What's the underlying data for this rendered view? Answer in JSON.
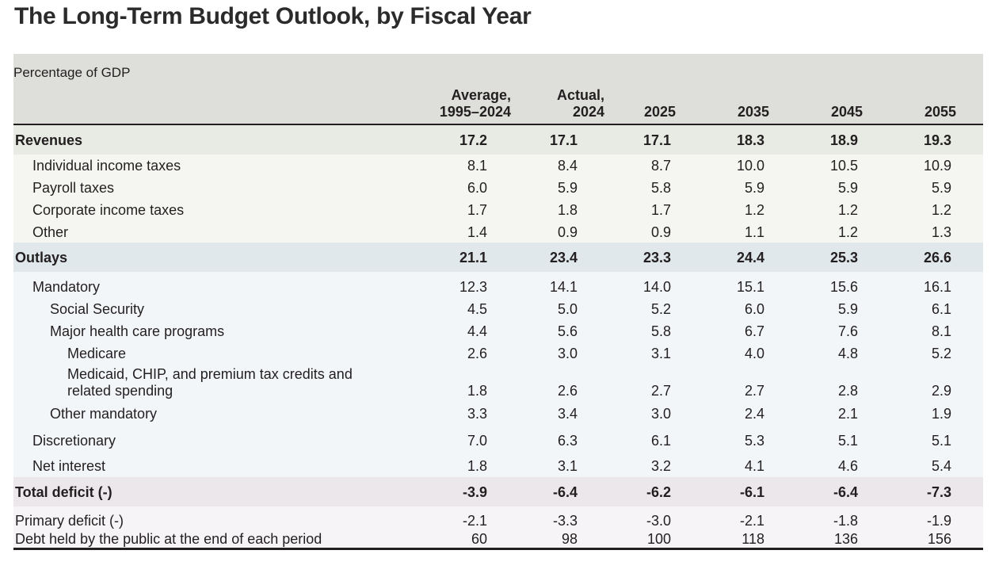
{
  "title": "The Long-Term Budget Outlook, by Fiscal Year",
  "unit_label": "Percentage of GDP",
  "columns": [
    {
      "line1": "Average,",
      "line2": "1995–2024"
    },
    {
      "line1": "Actual,",
      "line2": "2024"
    },
    {
      "line1": "",
      "line2": "2025"
    },
    {
      "line1": "",
      "line2": "2035"
    },
    {
      "line1": "",
      "line2": "2045"
    },
    {
      "line1": "",
      "line2": "2055"
    }
  ],
  "rows": [
    {
      "label": "Revenues",
      "values": [
        "17.2",
        "17.1",
        "17.1",
        "18.3",
        "18.9",
        "19.3"
      ]
    },
    {
      "label": "Individual income taxes",
      "values": [
        "8.1",
        "8.4",
        "8.7",
        "10.0",
        "10.5",
        "10.9"
      ]
    },
    {
      "label": "Payroll taxes",
      "values": [
        "6.0",
        "5.9",
        "5.8",
        "5.9",
        "5.9",
        "5.9"
      ]
    },
    {
      "label": "Corporate income taxes",
      "values": [
        "1.7",
        "1.8",
        "1.7",
        "1.2",
        "1.2",
        "1.2"
      ]
    },
    {
      "label": "Other",
      "values": [
        "1.4",
        "0.9",
        "0.9",
        "1.1",
        "1.2",
        "1.3"
      ]
    },
    {
      "label": "Outlays",
      "values": [
        "21.1",
        "23.4",
        "23.3",
        "24.4",
        "25.3",
        "26.6"
      ]
    },
    {
      "label": "Mandatory",
      "values": [
        "12.3",
        "14.1",
        "14.0",
        "15.1",
        "15.6",
        "16.1"
      ]
    },
    {
      "label": "Social Security",
      "values": [
        "4.5",
        "5.0",
        "5.2",
        "6.0",
        "5.9",
        "6.1"
      ]
    },
    {
      "label": "Major health care programs",
      "values": [
        "4.4",
        "5.6",
        "5.8",
        "6.7",
        "7.6",
        "8.1"
      ]
    },
    {
      "label": "Medicare",
      "values": [
        "2.6",
        "3.0",
        "3.1",
        "4.0",
        "4.8",
        "5.2"
      ]
    },
    {
      "label": "Medicaid, CHIP, and premium tax credits and",
      "label2": "related spending",
      "values": [
        "1.8",
        "2.6",
        "2.7",
        "2.7",
        "2.8",
        "2.9"
      ]
    },
    {
      "label": "Other mandatory",
      "values": [
        "3.3",
        "3.4",
        "3.0",
        "2.4",
        "2.1",
        "1.9"
      ]
    },
    {
      "label": "Discretionary",
      "values": [
        "7.0",
        "6.3",
        "6.1",
        "5.3",
        "5.1",
        "5.1"
      ]
    },
    {
      "label": "Net interest",
      "values": [
        "1.8",
        "3.1",
        "3.2",
        "4.1",
        "4.6",
        "5.4"
      ]
    },
    {
      "label": "Total deficit (-)",
      "values": [
        "-3.9",
        "-6.4",
        "-6.2",
        "-6.1",
        "-6.4",
        "-7.3"
      ]
    },
    {
      "label": "Primary deficit (-)",
      "values": [
        "-2.1",
        "-3.3",
        "-3.0",
        "-2.1",
        "-1.8",
        "-1.9"
      ]
    },
    {
      "label": "Debt held by the public at the end of each period",
      "values": [
        "60",
        "98",
        "100",
        "118",
        "136",
        "156"
      ]
    }
  ]
}
